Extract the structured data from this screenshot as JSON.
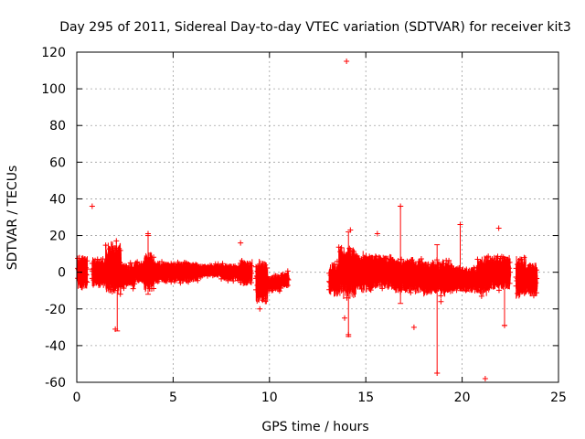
{
  "chart_data": {
    "type": "scatter",
    "title": "Day 295 of 2011, Sidereal Day-to-day VTEC variation (SDTVAR) for receiver kit3",
    "xlabel": "GPS time / hours",
    "ylabel": "SDTVAR / TECUs",
    "xlim": [
      0,
      25
    ],
    "ylim": [
      -60,
      120
    ],
    "xticks": [
      0,
      5,
      10,
      15,
      20,
      25
    ],
    "yticks": [
      -60,
      -40,
      -20,
      0,
      20,
      40,
      60,
      80,
      100,
      120
    ],
    "xtick_labels": [
      "0",
      "5",
      "10",
      "15",
      "20",
      "25"
    ],
    "ytick_labels": [
      "-60",
      "-40",
      "-20",
      "0",
      "20",
      "40",
      "60",
      "80",
      "100",
      "120"
    ],
    "grid": true,
    "marker": "+",
    "color": "#ff0000",
    "series": [
      {
        "name": "SDTVAR",
        "segments": [
          {
            "x_start": 0.05,
            "x_end": 0.55,
            "center": 0,
            "spread": 8
          },
          {
            "x_start": 0.8,
            "x_end": 1.5,
            "center": 0,
            "spread": 7
          },
          {
            "x_start": 1.5,
            "x_end": 2.3,
            "center": 2,
            "spread": 12
          },
          {
            "x_start": 2.3,
            "x_end": 3.0,
            "center": -2,
            "spread": 6
          },
          {
            "x_start": 3.0,
            "x_end": 3.5,
            "center": 0,
            "spread": 5
          },
          {
            "x_start": 3.5,
            "x_end": 4.0,
            "center": 0,
            "spread": 9
          },
          {
            "x_start": 4.0,
            "x_end": 6.3,
            "center": 0,
            "spread": 5
          },
          {
            "x_start": 6.3,
            "x_end": 7.5,
            "center": 1,
            "spread": 3
          },
          {
            "x_start": 7.5,
            "x_end": 8.5,
            "center": 0,
            "spread": 4
          },
          {
            "x_start": 8.5,
            "x_end": 9.1,
            "center": 0,
            "spread": 6
          },
          {
            "x_start": 9.3,
            "x_end": 9.9,
            "center": -5,
            "spread": 10
          },
          {
            "x_start": 9.9,
            "x_end": 10.6,
            "center": -6,
            "spread": 4
          },
          {
            "x_start": 10.6,
            "x_end": 11.0,
            "center": -4,
            "spread": 4
          },
          {
            "x_start": 13.1,
            "x_end": 13.6,
            "center": -4,
            "spread": 8
          },
          {
            "x_start": 13.6,
            "x_end": 14.5,
            "center": 0,
            "spread": 12
          },
          {
            "x_start": 14.5,
            "x_end": 15.3,
            "center": 0,
            "spread": 9
          },
          {
            "x_start": 15.3,
            "x_end": 16.5,
            "center": 0,
            "spread": 8
          },
          {
            "x_start": 16.5,
            "x_end": 18.0,
            "center": -2,
            "spread": 8
          },
          {
            "x_start": 18.0,
            "x_end": 19.5,
            "center": -3,
            "spread": 8
          },
          {
            "x_start": 19.5,
            "x_end": 20.8,
            "center": -4,
            "spread": 6
          },
          {
            "x_start": 20.8,
            "x_end": 21.5,
            "center": -2,
            "spread": 9
          },
          {
            "x_start": 21.5,
            "x_end": 22.5,
            "center": 0,
            "spread": 8
          },
          {
            "x_start": 22.8,
            "x_end": 23.3,
            "center": -2,
            "spread": 10
          },
          {
            "x_start": 23.3,
            "x_end": 23.9,
            "center": -4,
            "spread": 8
          }
        ],
        "outliers": [
          {
            "x": 0.8,
            "y": 36
          },
          {
            "x": 14.0,
            "y": 115
          },
          {
            "x": 14.1,
            "y": -34
          },
          {
            "x": 14.2,
            "y": 23
          },
          {
            "x": 15.6,
            "y": 21
          },
          {
            "x": 16.8,
            "y": 36
          },
          {
            "x": 17.5,
            "y": -30
          },
          {
            "x": 18.7,
            "y": -55
          },
          {
            "x": 18.9,
            "y": -16
          },
          {
            "x": 19.9,
            "y": 26
          },
          {
            "x": 21.2,
            "y": -58
          },
          {
            "x": 21.9,
            "y": 24
          },
          {
            "x": 22.2,
            "y": -29
          },
          {
            "x": 2.0,
            "y": -31
          },
          {
            "x": 3.7,
            "y": 21
          },
          {
            "x": 8.5,
            "y": 16
          },
          {
            "x": 9.5,
            "y": -20
          },
          {
            "x": 13.9,
            "y": -25
          }
        ],
        "error_bars": [
          {
            "x": 2.1,
            "low": -32,
            "high": 12
          },
          {
            "x": 3.7,
            "low": -12,
            "high": 20
          },
          {
            "x": 14.1,
            "low": -35,
            "high": 22
          },
          {
            "x": 16.8,
            "low": -17,
            "high": 36
          },
          {
            "x": 18.7,
            "low": -55,
            "high": 15
          },
          {
            "x": 19.9,
            "low": -10,
            "high": 26
          },
          {
            "x": 22.2,
            "low": -29,
            "high": 8
          }
        ]
      }
    ]
  }
}
